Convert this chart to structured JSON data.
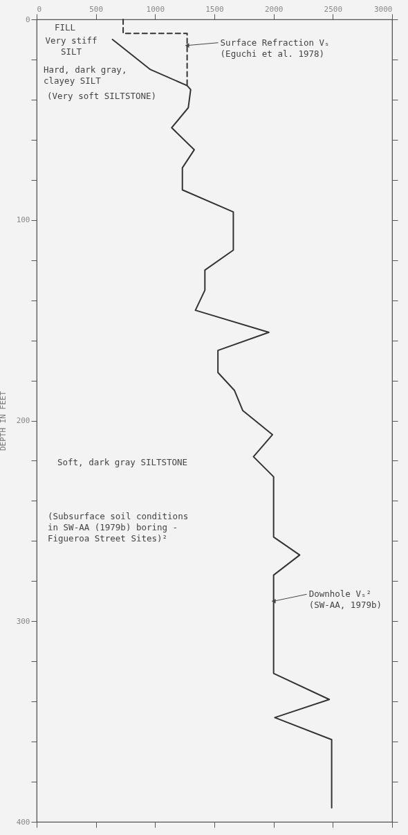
{
  "chart_data": {
    "type": "line",
    "ylabel": "DEPTH IN FEET",
    "xlim": [
      0,
      3000
    ],
    "xticks": [
      0,
      500,
      1000,
      1500,
      2000,
      2500,
      3000
    ],
    "ylim": [
      400,
      0
    ],
    "yticks": [
      0,
      {
        "value": 20,
        "label": null
      },
      {
        "value": 40,
        "label": null
      },
      {
        "value": 60,
        "label": null
      },
      {
        "value": 80,
        "label": null
      },
      100,
      {
        "value": 120,
        "label": null
      },
      {
        "value": 140,
        "label": null
      },
      {
        "value": 160,
        "label": null
      },
      {
        "value": 180,
        "label": null
      },
      200,
      {
        "value": 220,
        "label": null
      },
      {
        "value": 240,
        "label": null
      },
      {
        "value": 260,
        "label": null
      },
      {
        "value": 280,
        "label": null
      },
      300,
      {
        "value": 320,
        "label": null
      },
      {
        "value": 340,
        "label": null
      },
      {
        "value": 360,
        "label": null
      },
      {
        "value": 380,
        "label": null
      },
      400
    ],
    "grid": false,
    "series": [
      {
        "color": "#333333",
        "line_style": "solid",
        "x": [
          640,
          960,
          1270,
          1300,
          1280,
          1140,
          1330,
          1230,
          1230,
          1660,
          1660,
          1420,
          1420,
          1340,
          1960,
          1530,
          1530,
          1670,
          1740,
          1990,
          1830,
          2000,
          2000,
          2220,
          2000,
          2000,
          2470,
          2010,
          2490,
          2490
        ],
        "values": [
          10,
          25,
          33,
          35,
          44,
          54,
          65,
          74,
          85,
          96,
          115,
          125,
          135,
          145,
          156,
          165,
          176,
          185,
          195,
          207,
          218,
          228,
          258,
          267,
          277,
          326,
          339,
          348,
          359,
          393
        ]
      },
      {
        "color": "#333333",
        "line_style": "dashed",
        "x": [
          730,
          730,
          1270,
          1270
        ],
        "values": [
          0,
          7,
          7,
          34
        ]
      }
    ],
    "annotations": [
      "FILL",
      "Very stiff\nSILT",
      "Hard, dark gray,\nclayey SILT",
      "(Very soft SILTSTONE)",
      "Soft, dark gray SILTSTONE",
      "(Subsurface soil conditions\nin SW-AA (1979b) boring -\nFigueroa Street Sites)²",
      {
        "text": "Surface Refraction Vₛ\n(Eguchi et al. 1978)",
        "x": 1270,
        "y": 13
      },
      {
        "text": "Downhole Vₛ²\n(SW-AA, 1979b)",
        "x": 2000,
        "y": 290
      }
    ]
  }
}
